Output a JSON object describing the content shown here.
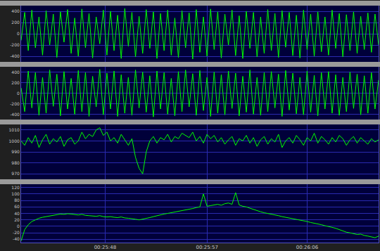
{
  "chart_data": [
    {
      "type": "line",
      "color": "#00ff00",
      "grid": true,
      "tick_labels": "y",
      "xlim": [
        0,
        100
      ],
      "xticks": [
        23.5,
        52,
        80
      ],
      "ylim": [
        -500,
        500
      ],
      "yticks": [
        -400,
        -200,
        0,
        200,
        400
      ],
      "x": [
        0,
        1,
        2,
        3,
        4,
        5,
        6,
        7,
        8,
        9,
        10,
        11,
        12,
        13,
        14,
        15,
        16,
        17,
        18,
        19,
        20,
        21,
        22,
        23,
        24,
        25,
        26,
        27,
        28,
        29,
        30,
        31,
        32,
        33,
        34,
        35,
        36,
        37,
        38,
        39,
        40,
        41,
        42,
        43,
        44,
        45,
        46,
        47,
        48,
        49,
        50,
        51,
        52,
        53,
        54,
        55,
        56,
        57,
        58,
        59,
        60,
        61,
        62,
        63,
        64,
        65,
        66,
        67,
        68,
        69,
        70,
        71,
        72,
        73,
        74,
        75,
        76,
        77,
        78,
        79,
        80,
        81,
        82,
        83,
        84,
        85,
        86,
        87,
        88,
        89,
        90,
        91,
        92,
        93,
        94,
        95,
        96,
        97,
        98,
        99,
        100
      ],
      "values": [
        -120,
        380,
        -300,
        420,
        -250,
        300,
        -380,
        410,
        -200,
        350,
        -420,
        390,
        -150,
        430,
        -350,
        280,
        -400,
        440,
        -250,
        360,
        -430,
        300,
        -180,
        420,
        -380,
        400,
        -300,
        330,
        -440,
        450,
        -220,
        380,
        -410,
        310,
        -350,
        430,
        -260,
        390,
        -440,
        360,
        -300,
        420,
        -380,
        280,
        -420,
        410,
        -250,
        370,
        -450,
        430,
        -330,
        300,
        -400,
        440,
        -280,
        390,
        -430,
        350,
        -200,
        420,
        -390,
        320,
        -440,
        400,
        -260,
        380,
        -410,
        300,
        -350,
        430,
        -300,
        360,
        -420,
        410,
        -240,
        380,
        -390,
        330,
        -430,
        420,
        -280,
        350,
        -400,
        390,
        -320,
        300,
        -380,
        420,
        -260,
        360,
        -410,
        340,
        -300,
        390,
        -350,
        310,
        -280,
        370,
        -330,
        350,
        -200
      ]
    },
    {
      "type": "line",
      "color": "#00ff00",
      "grid": true,
      "tick_labels": "y",
      "xlim": [
        0,
        100
      ],
      "xticks": [
        23.5,
        52,
        80
      ],
      "ylim": [
        -500,
        500
      ],
      "yticks": [
        -400,
        -200,
        0,
        200,
        400
      ],
      "x": [
        0,
        1,
        2,
        3,
        4,
        5,
        6,
        7,
        8,
        9,
        10,
        11,
        12,
        13,
        14,
        15,
        16,
        17,
        18,
        19,
        20,
        21,
        22,
        23,
        24,
        25,
        26,
        27,
        28,
        29,
        30,
        31,
        32,
        33,
        34,
        35,
        36,
        37,
        38,
        39,
        40,
        41,
        42,
        43,
        44,
        45,
        46,
        47,
        48,
        49,
        50,
        51,
        52,
        53,
        54,
        55,
        56,
        57,
        58,
        59,
        60,
        61,
        62,
        63,
        64,
        65,
        66,
        67,
        68,
        69,
        70,
        71,
        72,
        73,
        74,
        75,
        76,
        77,
        78,
        79,
        80,
        81,
        82,
        83,
        84,
        85,
        86,
        87,
        88,
        89,
        90,
        91,
        92,
        93,
        94,
        95,
        96,
        97,
        98,
        99,
        100
      ],
      "values": [
        100,
        -350,
        420,
        -280,
        390,
        -420,
        300,
        -380,
        440,
        -250,
        360,
        -430,
        410,
        -300,
        280,
        -400,
        430,
        -350,
        390,
        -440,
        320,
        -260,
        450,
        -410,
        380,
        -300,
        420,
        -440,
        350,
        -380,
        300,
        -420,
        440,
        -280,
        400,
        -360,
        330,
        -450,
        420,
        -300,
        390,
        -400,
        280,
        -430,
        410,
        -350,
        440,
        -260,
        370,
        -420,
        430,
        -330,
        300,
        -440,
        400,
        -380,
        350,
        -410,
        420,
        -290,
        380,
        -430,
        320,
        -360,
        440,
        -400,
        300,
        -420,
        390,
        -350,
        410,
        -280,
        360,
        -440,
        430,
        -320,
        380,
        -390,
        300,
        -410,
        420,
        -360,
        340,
        -430,
        390,
        -300,
        410,
        -380,
        350,
        -420,
        300,
        -350,
        400,
        -290,
        360,
        -410,
        330,
        -380,
        390,
        -300,
        250
      ]
    },
    {
      "type": "line",
      "color": "#00ff00",
      "grid": true,
      "tick_labels": "y",
      "xlim": [
        0,
        100
      ],
      "xticks": [
        23.5,
        52,
        80
      ],
      "ylim": [
        965,
        1015
      ],
      "yticks": [
        970,
        980,
        990,
        1000,
        1010
      ],
      "x": [
        0,
        1,
        2,
        3,
        4,
        5,
        6,
        7,
        8,
        9,
        10,
        11,
        12,
        13,
        14,
        15,
        16,
        17,
        18,
        19,
        20,
        21,
        22,
        23,
        24,
        25,
        26,
        27,
        28,
        29,
        30,
        31,
        32,
        33,
        34,
        35,
        36,
        37,
        38,
        39,
        40,
        41,
        42,
        43,
        44,
        45,
        46,
        47,
        48,
        49,
        50,
        51,
        52,
        53,
        54,
        55,
        56,
        57,
        58,
        59,
        60,
        61,
        62,
        63,
        64,
        65,
        66,
        67,
        68,
        69,
        70,
        71,
        72,
        73,
        74,
        75,
        76,
        77,
        78,
        79,
        80,
        81,
        82,
        83,
        84,
        85,
        86,
        87,
        88,
        89,
        90,
        91,
        92,
        93,
        94,
        95,
        96,
        97,
        98,
        99,
        100
      ],
      "values": [
        1000,
        996,
        1003,
        998,
        1005,
        994,
        1001,
        1006,
        997,
        1002,
        999,
        1004,
        995,
        1001,
        1003,
        997,
        1000,
        1008,
        1002,
        1006,
        1004,
        1010,
        1012,
        1005,
        1008,
        1000,
        1003,
        998,
        1006,
        1001,
        996,
        1002,
        985,
        975,
        970,
        990,
        1000,
        1004,
        998,
        1003,
        1001,
        1006,
        999,
        1004,
        1002,
        1007,
        1005,
        1003,
        1008,
        1000,
        1004,
        998,
        1006,
        1002,
        1005,
        999,
        1003,
        997,
        1001,
        1004,
        996,
        1002,
        1000,
        1005,
        998,
        1003,
        995,
        1001,
        1004,
        997,
        1002,
        999,
        1006,
        994,
        1000,
        1003,
        998,
        1005,
        1001,
        996,
        1003,
        1000,
        1007,
        998,
        1004,
        1001,
        997,
        1003,
        999,
        1005,
        1002,
        996,
        1001,
        1004,
        998,
        1003,
        1000,
        997,
        1002,
        999,
        1001
      ]
    },
    {
      "type": "line",
      "color": "#00ff00",
      "grid": true,
      "xlim": [
        0,
        100
      ],
      "xticks": [
        {
          "value": 23.5,
          "label": "00:25:48"
        },
        {
          "value": 52,
          "label": "00:25:57"
        },
        {
          "value": 80,
          "label": "00:26:06"
        }
      ],
      "ylim": [
        -50,
        130
      ],
      "yticks": [
        -40,
        -20,
        0,
        20,
        40,
        60,
        80,
        100,
        120
      ],
      "x": [
        0,
        1,
        2,
        3,
        4,
        5,
        6,
        7,
        8,
        9,
        10,
        11,
        12,
        13,
        14,
        15,
        16,
        17,
        18,
        19,
        20,
        21,
        22,
        23,
        24,
        25,
        26,
        27,
        28,
        29,
        30,
        31,
        32,
        33,
        34,
        35,
        36,
        37,
        38,
        39,
        40,
        41,
        42,
        43,
        44,
        45,
        46,
        47,
        48,
        49,
        50,
        51,
        52,
        53,
        54,
        55,
        56,
        57,
        58,
        59,
        60,
        61,
        62,
        63,
        64,
        65,
        66,
        67,
        68,
        69,
        70,
        71,
        72,
        73,
        74,
        75,
        76,
        77,
        78,
        79,
        80,
        81,
        82,
        83,
        84,
        85,
        86,
        87,
        88,
        89,
        90,
        91,
        92,
        93,
        94,
        95,
        96,
        97,
        98,
        99,
        100
      ],
      "values": [
        -45,
        -10,
        5,
        15,
        20,
        25,
        28,
        30,
        32,
        35,
        36,
        38,
        37,
        39,
        38,
        36,
        35,
        37,
        34,
        33,
        32,
        31,
        33,
        30,
        29,
        30,
        28,
        27,
        29,
        26,
        25,
        24,
        22,
        20,
        22,
        24,
        27,
        30,
        33,
        35,
        38,
        40,
        42,
        44,
        46,
        48,
        50,
        52,
        55,
        58,
        60,
        100,
        62,
        64,
        66,
        68,
        65,
        70,
        72,
        68,
        104,
        66,
        62,
        60,
        56,
        52,
        48,
        45,
        42,
        40,
        38,
        35,
        33,
        30,
        28,
        26,
        24,
        22,
        20,
        18,
        15,
        12,
        10,
        8,
        5,
        2,
        0,
        -3,
        -6,
        -10,
        -14,
        -18,
        -20,
        -22,
        -25,
        -24,
        -28,
        -30,
        -32,
        -35,
        -30
      ]
    }
  ]
}
